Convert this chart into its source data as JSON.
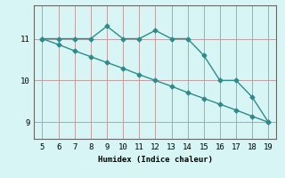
{
  "xlabel": "Humidex (Indice chaleur)",
  "ylabel": "",
  "x": [
    5,
    6,
    7,
    8,
    9,
    10,
    11,
    12,
    13,
    14,
    15,
    16,
    17,
    18,
    19
  ],
  "y_curve": [
    11,
    11,
    11,
    11,
    11.3,
    11,
    11,
    11.2,
    11,
    11,
    10.6,
    10,
    10,
    9.6,
    9
  ],
  "y_line": [
    11,
    10.86,
    10.71,
    10.57,
    10.43,
    10.29,
    10.14,
    10.0,
    9.86,
    9.71,
    9.57,
    9.43,
    9.29,
    9.14,
    9.0
  ],
  "line_color": "#2e8b8b",
  "bg_color": "#d8f5f5",
  "grid_color": "#c0a0a0",
  "yticks": [
    9,
    10,
    11
  ],
  "xticks": [
    5,
    6,
    7,
    8,
    9,
    10,
    11,
    12,
    13,
    14,
    15,
    16,
    17,
    18,
    19
  ],
  "ylim": [
    8.6,
    11.8
  ],
  "xlim": [
    4.5,
    19.5
  ]
}
